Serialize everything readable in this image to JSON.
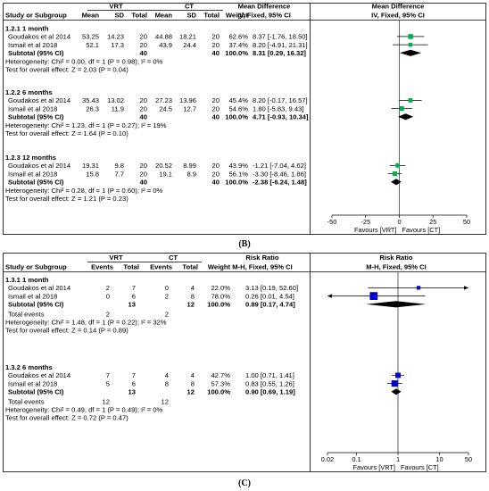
{
  "chart_data": [
    {
      "type": "forest",
      "caption": "(B)",
      "columns": {
        "study": "Study or Subgroup",
        "group1": "VRT",
        "group2": "CT",
        "mean": "Mean",
        "sd": "SD",
        "total": "Total",
        "weight": "Weight",
        "effect": "Mean Difference",
        "method": "IV, Fixed, 95% CI",
        "plot_effect": "Mean Difference",
        "plot_method": "IV, Fixed, 95% CI"
      },
      "xlim": [
        -50,
        50
      ],
      "xticks": [
        "-50",
        "-25",
        "0",
        "25",
        "50"
      ],
      "xtick_values": [
        -50,
        -25,
        0,
        25,
        50
      ],
      "favours_left": "Favours [VRT]",
      "favours_right": "Favours [CT]",
      "color": "#00b050",
      "subgroups": [
        {
          "title": "1.2.1 1 month",
          "studies": [
            {
              "name": "Goudakos et al 2014",
              "m1": "53.25",
              "sd1": "14.23",
              "n1": "20",
              "m2": "44.88",
              "sd2": "18.21",
              "n2": "20",
              "weight": "62.6%",
              "ci": "8.37 [-1.76, 18.50]",
              "est": 8.37,
              "lo": -1.76,
              "hi": 18.5,
              "w": 62.6
            },
            {
              "name": "Ismail et al 2018",
              "m1": "52.1",
              "sd1": "17.3",
              "n1": "20",
              "m2": "43.9",
              "sd2": "24.4",
              "n2": "20",
              "weight": "37.4%",
              "ci": "8.20 [-4.91, 21.31]",
              "est": 8.2,
              "lo": -4.91,
              "hi": 21.31,
              "w": 37.4
            }
          ],
          "subtotal": {
            "label": "Subtotal (95% CI)",
            "n1": "40",
            "n2": "40",
            "weight": "100.0%",
            "ci": "8.31 [0.29, 16.32]",
            "est": 8.31,
            "lo": 0.29,
            "hi": 16.32
          },
          "heterogeneity": "Heterogeneity: Chi² = 0.00, df = 1 (P = 0.98); I² = 0%",
          "test": "Test for overall effect: Z = 2.03 (P = 0.04)"
        },
        {
          "title": "1.2.2 6 months",
          "studies": [
            {
              "name": "Goudakos et al 2014",
              "m1": "35.43",
              "sd1": "13.02",
              "n1": "20",
              "m2": "27.23",
              "sd2": "13.96",
              "n2": "20",
              "weight": "45.4%",
              "ci": "8.20 [-0.17, 16.57]",
              "est": 8.2,
              "lo": -0.17,
              "hi": 16.57,
              "w": 45.4
            },
            {
              "name": "Ismail et al 2018",
              "m1": "26.3",
              "sd1": "11.9",
              "n1": "20",
              "m2": "24.5",
              "sd2": "12.7",
              "n2": "20",
              "weight": "54.6%",
              "ci": "1.80 [-5.83, 9.43]",
              "est": 1.8,
              "lo": -5.83,
              "hi": 9.43,
              "w": 54.6
            }
          ],
          "subtotal": {
            "label": "Subtotal (95% CI)",
            "n1": "40",
            "n2": "40",
            "weight": "100.0%",
            "ci": "4.71 [-0.93, 10.34]",
            "est": 4.71,
            "lo": -0.93,
            "hi": 10.34
          },
          "heterogeneity": "Heterogeneity: Chi² = 1.23, df = 1 (P = 0.27); I² = 19%",
          "test": "Test for overall effect: Z = 1.64 (P = 0.10)"
        },
        {
          "title": "1.2.3 12 months",
          "studies": [
            {
              "name": "Goudakos et al 2014",
              "m1": "19.31",
              "sd1": "9.8",
              "n1": "20",
              "m2": "20.52",
              "sd2": "8.99",
              "n2": "20",
              "weight": "43.9%",
              "ci": "-1.21 [-7.04, 4.62]",
              "est": -1.21,
              "lo": -7.04,
              "hi": 4.62,
              "w": 43.9
            },
            {
              "name": "Ismail et al 2018",
              "m1": "15.8",
              "sd1": "7.7",
              "n1": "20",
              "m2": "19.1",
              "sd2": "8.9",
              "n2": "20",
              "weight": "56.1%",
              "ci": "-3.30 [-8.46, 1.86]",
              "est": -3.3,
              "lo": -8.46,
              "hi": 1.86,
              "w": 56.1
            }
          ],
          "subtotal": {
            "label": "Subtotal (95% CI)",
            "n1": "40",
            "n2": "40",
            "weight": "100.0%",
            "ci": "-2.38 [-6.24, 1.48]",
            "est": -2.38,
            "lo": -6.24,
            "hi": 1.48
          },
          "heterogeneity": "Heterogeneity: Chi² = 0.28, df = 1 (P = 0.60); I² = 0%",
          "test": "Test for overall effect: Z = 1.21 (P = 0.23)"
        }
      ]
    },
    {
      "type": "forest",
      "caption": "(C)",
      "columns": {
        "study": "Study or Subgroup",
        "group1": "VRT",
        "group2": "CT",
        "events": "Events",
        "total": "Total",
        "weight": "Weight",
        "effect": "Risk Ratio",
        "method": "M-H, Fixed, 95% CI",
        "plot_effect": "Risk Ratio",
        "plot_method": "M-H, Fixed, 95% CI"
      },
      "scale": "log",
      "xlim": [
        0.02,
        50
      ],
      "xticks": [
        "0.02",
        "0.1",
        "1",
        "10",
        "50"
      ],
      "xtick_values": [
        0.02,
        0.1,
        1,
        10,
        50
      ],
      "favours_left": "Favours [VRT]",
      "favours_right": "Favours [CT]",
      "color": "#0000cc",
      "subgroups": [
        {
          "title": "1.3.1 1 month",
          "studies": [
            {
              "name": "Goudakos et al 2014",
              "e1": "2",
              "n1": "7",
              "e2": "0",
              "n2": "4",
              "weight": "22.0%",
              "ci": "3.13 [0.19, 52.60]",
              "est": 3.13,
              "lo": 0.19,
              "hi": 52.6,
              "w": 22.0
            },
            {
              "name": "Ismail et al 2018",
              "e1": "0",
              "n1": "6",
              "e2": "2",
              "n2": "8",
              "weight": "78.0%",
              "ci": "0.26 [0.01, 4.54]",
              "est": 0.26,
              "lo": 0.01,
              "hi": 4.54,
              "w": 78.0
            }
          ],
          "subtotal": {
            "label": "Subtotal (95% CI)",
            "n1": "13",
            "n2": "12",
            "weight": "100.0%",
            "ci": "0.89 [0.17, 4.74]",
            "est": 0.89,
            "lo": 0.17,
            "hi": 4.74
          },
          "total_events": {
            "label": "Total events",
            "e1": "2",
            "e2": "2"
          },
          "heterogeneity": "Heterogeneity: Chi² = 1.48, df = 1 (P = 0.22); I² = 32%",
          "test": "Test for overall effect: Z = 0.14 (P = 0.89)"
        },
        {
          "title": "1.3.2 6 months",
          "studies": [
            {
              "name": "Goudakos et al 2014",
              "e1": "7",
              "n1": "7",
              "e2": "4",
              "n2": "4",
              "weight": "42.7%",
              "ci": "1.00 [0.71, 1.41]",
              "est": 1.0,
              "lo": 0.71,
              "hi": 1.41,
              "w": 42.7
            },
            {
              "name": "Ismail et al 2018",
              "e1": "5",
              "n1": "6",
              "e2": "8",
              "n2": "8",
              "weight": "57.3%",
              "ci": "0.83 [0.55, 1.26]",
              "est": 0.83,
              "lo": 0.55,
              "hi": 1.26,
              "w": 57.3
            }
          ],
          "subtotal": {
            "label": "Subtotal (95% CI)",
            "n1": "13",
            "n2": "12",
            "weight": "100.0%",
            "ci": "0.90 [0.69, 1.19]",
            "est": 0.9,
            "lo": 0.69,
            "hi": 1.19
          },
          "total_events": {
            "label": "Total events",
            "e1": "12",
            "e2": "12"
          },
          "heterogeneity": "Heterogeneity: Chi² = 0.49, df = 1 (P = 0.49); I² = 0%",
          "test": "Test for overall effect: Z = 0.72 (P = 0.47)"
        }
      ]
    }
  ]
}
